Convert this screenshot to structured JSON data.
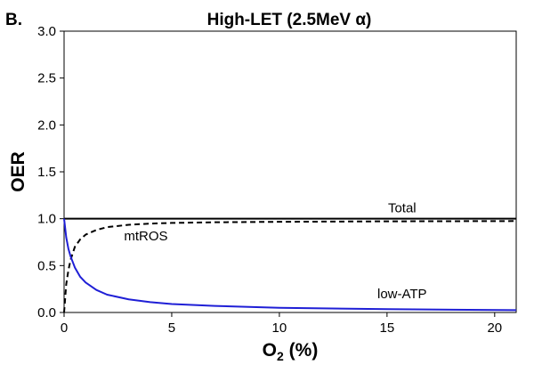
{
  "panel_label": "B.",
  "chart_data": {
    "type": "line",
    "title": "High-LET (2.5MeV α)",
    "xlabel": "O",
    "xlabel_sub": "2",
    "xlabel_suffix": " (%)",
    "ylabel": "OER",
    "xlim": [
      0,
      21
    ],
    "ylim": [
      0.0,
      3.0
    ],
    "x_ticks": [
      0,
      5,
      10,
      15,
      20
    ],
    "x_tick_labels": [
      "0",
      "5",
      "10",
      "15",
      "20"
    ],
    "y_ticks": [
      0.0,
      0.5,
      1.0,
      1.5,
      2.0,
      2.5,
      3.0
    ],
    "y_tick_labels": [
      "0.0",
      "0.5",
      "1.0",
      "1.5",
      "2.0",
      "2.5",
      "3.0"
    ],
    "grid": false,
    "series": [
      {
        "name": "Total",
        "color": "#000000",
        "style": "solid",
        "x": [
          0,
          0.5,
          1,
          2,
          3,
          5,
          7,
          10,
          15,
          21
        ],
        "y": [
          1.0,
          1.0,
          1.0,
          1.0,
          1.0,
          1.0,
          1.0,
          1.0,
          1.0,
          1.0
        ]
      },
      {
        "name": "mtROS",
        "color": "#000000",
        "style": "dashed",
        "x": [
          0,
          0.1,
          0.2,
          0.3,
          0.5,
          0.75,
          1,
          1.5,
          2,
          3,
          4,
          5,
          7,
          10,
          15,
          21
        ],
        "y": [
          0.0,
          0.3,
          0.45,
          0.56,
          0.7,
          0.78,
          0.83,
          0.88,
          0.91,
          0.935,
          0.948,
          0.955,
          0.962,
          0.967,
          0.972,
          0.975
        ]
      },
      {
        "name": "low-ATP",
        "color": "#1f1fd6",
        "style": "solid",
        "x": [
          0,
          0.1,
          0.2,
          0.3,
          0.5,
          0.75,
          1,
          1.5,
          2,
          3,
          4,
          5,
          7,
          10,
          15,
          21
        ],
        "y": [
          1.0,
          0.8,
          0.68,
          0.6,
          0.48,
          0.38,
          0.32,
          0.24,
          0.19,
          0.14,
          0.11,
          0.09,
          0.07,
          0.05,
          0.035,
          0.025
        ]
      }
    ],
    "annotations": [
      {
        "text": "Total",
        "x": 15.7,
        "y": 1.07
      },
      {
        "text": "mtROS",
        "x": 3.8,
        "y": 0.77
      },
      {
        "text": "low-ATP",
        "x": 15.7,
        "y": 0.15
      }
    ]
  }
}
